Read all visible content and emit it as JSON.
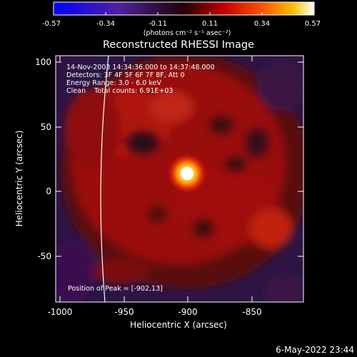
{
  "colorbar": {
    "ticks": [
      "-0.57",
      "-0.34",
      "-0.11",
      "0.11",
      "0.34",
      "0.57"
    ],
    "unit_label": "(photons cm⁻² s⁻¹ asec⁻²)"
  },
  "title": "Reconstructed RHESSI Image",
  "info_lines": [
    "14-Nov-2003 14:34:36.000 to 14:37:48.000",
    "Detectors: 3F 4F 5F 6F 7F 8F, Att 0",
    "Energy Range: 3.0 - 6.0 keV",
    "Clean    Total counts: 6.91E+03"
  ],
  "peak_text": "Position of Peak = [-902,13]",
  "axes": {
    "xlabel": "Heliocentric X (arcsec)",
    "ylabel": "Heliocentric Y (arcsec)",
    "xticks": [
      "-1000",
      "-950",
      "-900",
      "-850"
    ],
    "yticks": [
      "100",
      "50",
      "0",
      "-50"
    ]
  },
  "footer_timestamp": "6-May-2022 23:44"
}
